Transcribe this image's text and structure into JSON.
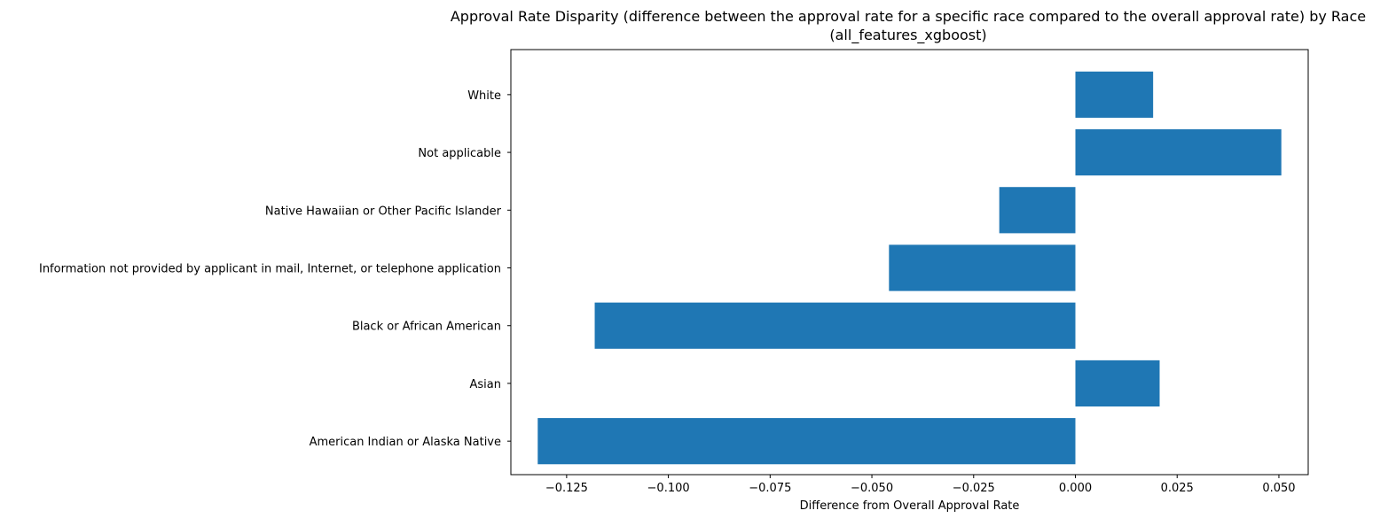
{
  "chart_data": {
    "type": "bar",
    "orientation": "horizontal",
    "title": "Approval Rate Disparity (difference between the approval rate for a specific race compared to the overall approval rate) by Race",
    "subtitle": "(all_features_xgboost)",
    "xlabel": "Difference from Overall Approval Rate",
    "ylabel": "",
    "categories": [
      "American Indian or Alaska Native",
      "Asian",
      "Black or African American",
      "Information not provided by applicant in mail, Internet, or telephone application",
      "Native Hawaiian or Other Pacific Islander",
      "Not applicable",
      "White"
    ],
    "values": [
      -0.1321,
      0.0207,
      -0.1181,
      -0.0458,
      -0.0187,
      0.0506,
      0.0191
    ],
    "xlim": [
      -0.1387,
      0.0572
    ],
    "xticks": [
      -0.125,
      -0.1,
      -0.075,
      -0.05,
      -0.025,
      0.0,
      0.025,
      0.05
    ],
    "xtick_labels": [
      "−0.125",
      "−0.100",
      "−0.075",
      "−0.050",
      "−0.025",
      "0.000",
      "0.025",
      "0.050"
    ],
    "bar_color": "#1f77b4",
    "grid": false,
    "legend": "none"
  }
}
